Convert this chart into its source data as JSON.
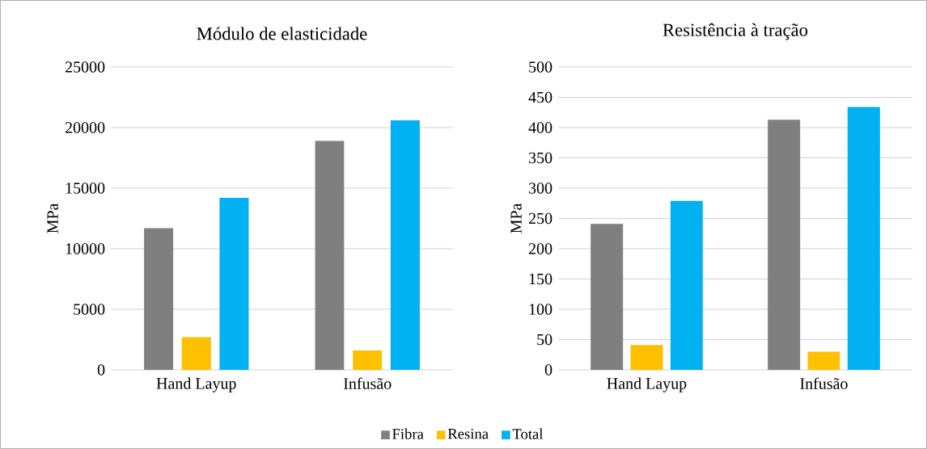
{
  "chart_data": [
    {
      "type": "bar",
      "title": "Módulo de elasticidade",
      "ylabel": "MPa",
      "categories": [
        "Hand Layup",
        "Infusão"
      ],
      "series": [
        {
          "name": "Fibra",
          "color": "#7f7f7f",
          "values": [
            11700,
            18900
          ]
        },
        {
          "name": "Resina",
          "color": "#ffc000",
          "values": [
            2700,
            1600
          ]
        },
        {
          "name": "Total",
          "color": "#00b0f0",
          "values": [
            14200,
            20600
          ]
        }
      ],
      "ylim": [
        0,
        25000
      ],
      "yticks": [
        0,
        5000,
        10000,
        15000,
        20000,
        25000
      ],
      "grid": "y",
      "legend": "bottom"
    },
    {
      "type": "bar",
      "title": "Resistência à tração",
      "ylabel": "MPa",
      "categories": [
        "Hand Layup",
        "Infusão"
      ],
      "series": [
        {
          "color": "#7f7f7f",
          "values": [
            241,
            413
          ]
        },
        {
          "color": "#ffc000",
          "values": [
            41,
            30
          ]
        },
        {
          "color": "#00b0f0",
          "values": [
            279,
            434
          ]
        }
      ],
      "ylim": [
        0,
        500
      ],
      "yticks": [
        0,
        50,
        100,
        150,
        200,
        250,
        300,
        350,
        400,
        450,
        500
      ],
      "grid": "y"
    }
  ]
}
